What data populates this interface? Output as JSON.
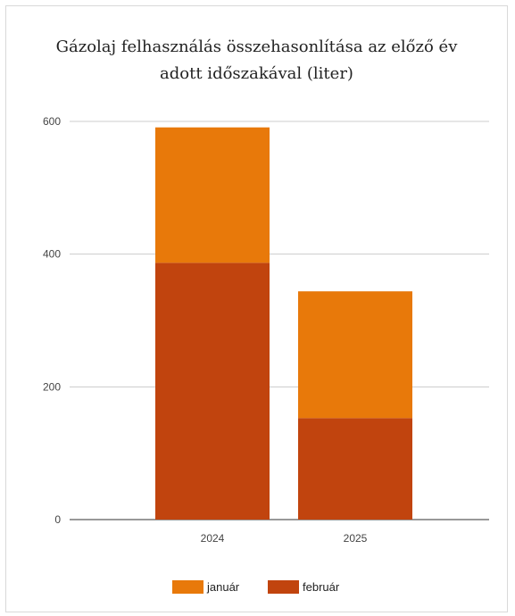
{
  "chart_data": {
    "type": "bar",
    "stacked": true,
    "title": "Gázolaj felhasználás összehasonlítása az előző év adott időszakával (liter)",
    "categories": [
      "2024",
      "2025"
    ],
    "series": [
      {
        "name": "február",
        "values": [
          387,
          153
        ],
        "color": "#c1440e"
      },
      {
        "name": "január",
        "values": [
          204,
          191
        ],
        "color": "#e8790a"
      }
    ],
    "yticks": [
      "0",
      "200",
      "400",
      "600"
    ],
    "ylim": [
      0,
      600
    ],
    "grid": true,
    "legend_position": "bottom",
    "legend_order": [
      {
        "name": "január",
        "color": "#e8790a"
      },
      {
        "name": "február",
        "color": "#c1440e"
      }
    ]
  }
}
